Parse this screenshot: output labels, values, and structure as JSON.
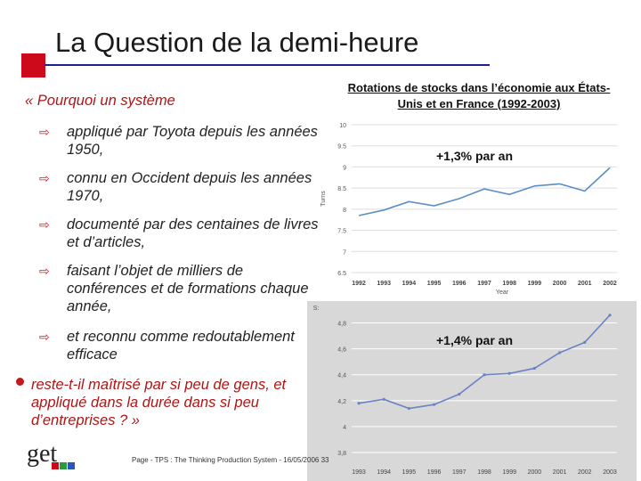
{
  "slide": {
    "title": "La Question de la demi-heure",
    "question_open": "« Pourquoi un système",
    "items": [
      "appliqué par Toyota depuis les années 1950,",
      "connu en Occident depuis les années 1970,",
      "documenté par des centaines de livres et d’articles,",
      "faisant l’objet de milliers de conférences et de formations chaque année,",
      "et reconnu comme redoutablement efficace"
    ],
    "question_close": "reste-t-il maîtrisé par si peu de gens, et appliqué dans la durée dans si peu d’entreprises ? »",
    "footer": "Page  - TPS : The Thinking Production System - 16/05/2006",
    "page_number": "33",
    "logo_text": "get"
  },
  "chart_data": [
    {
      "type": "line",
      "title": "Rotations de stocks dans l’économie aux États-Unis et en France (1992-2003)",
      "annotation": "+1,3% par an",
      "ylabel": "Turns",
      "xlabel": "Year",
      "x": [
        "1992",
        "1993",
        "1994",
        "1995",
        "1996",
        "1997",
        "1998",
        "1999",
        "2000",
        "2001",
        "2002"
      ],
      "y_ticks": [
        "10",
        "9.5",
        "9",
        "8.5",
        "8",
        "7.5",
        "7",
        "6.5"
      ],
      "ylim": [
        6.5,
        10
      ],
      "series": [
        {
          "values": [
            7.85,
            7.98,
            8.18,
            8.08,
            8.25,
            8.48,
            8.35,
            8.55,
            8.6,
            8.43,
            8.98
          ]
        }
      ],
      "colors": {
        "line": "#5a8fc6",
        "background": "#ffffff"
      }
    },
    {
      "type": "line",
      "annotation": "+1,4% par an",
      "ylabel": "S:",
      "x": [
        "1993",
        "1994",
        "1995",
        "1996",
        "1997",
        "1998",
        "1999",
        "2000",
        "2001",
        "2002",
        "2003"
      ],
      "y_ticks": [
        "4,8",
        "4,6",
        "4,4",
        "4,2",
        "4",
        "3,8"
      ],
      "ylim": [
        3.8,
        4.9
      ],
      "series": [
        {
          "values": [
            4.18,
            4.21,
            4.14,
            4.17,
            4.25,
            4.4,
            4.41,
            4.45,
            4.57,
            4.65,
            4.86
          ]
        }
      ],
      "colors": {
        "line": "#6a82c8",
        "background": "#d8d8d8"
      }
    }
  ],
  "colors": {
    "accent_red": "#cc0a1c",
    "title_rule": "#1f1f8f",
    "bullet_text": "#b11414"
  }
}
